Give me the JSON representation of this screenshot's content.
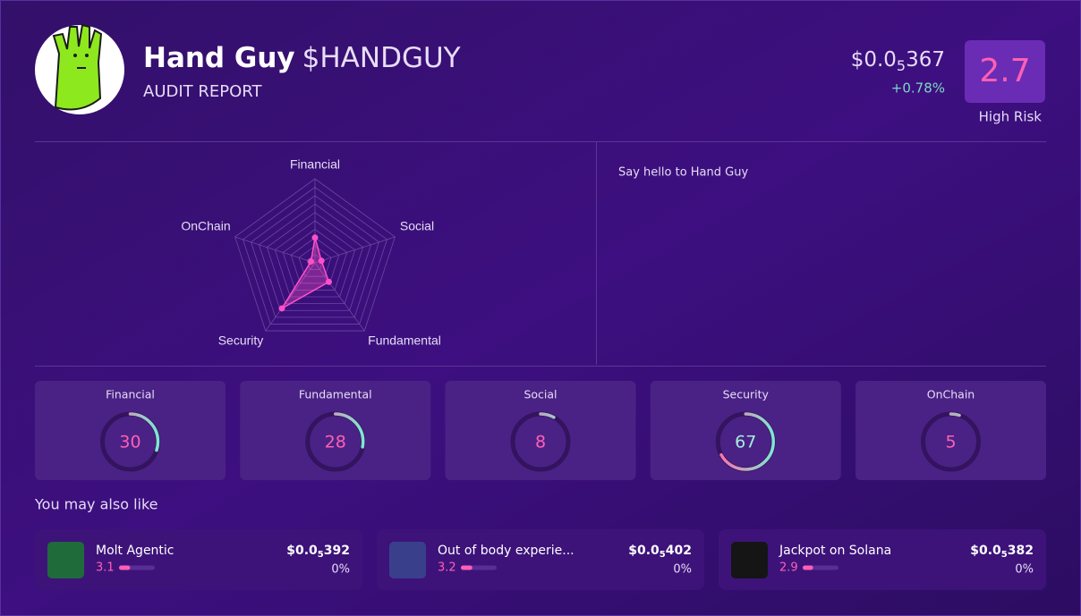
{
  "header": {
    "name": "Hand Guy",
    "ticker": "$HANDGUY",
    "subtitle": "AUDIT REPORT",
    "price": {
      "prefix": "$0.0",
      "zeros": "5",
      "digits": "367"
    },
    "change": "+0.78%",
    "score": 2.7,
    "risk": "High Risk"
  },
  "description": "Say hello to Hand Guy",
  "scores": {
    "rlim": [
      0,
      100
    ],
    "items": [
      {
        "label": "Financial",
        "value": 30
      },
      {
        "label": "Fundamental",
        "value": 28
      },
      {
        "label": "Social",
        "value": 8
      },
      {
        "label": "Security",
        "value": 67
      },
      {
        "label": "OnChain",
        "value": 5
      }
    ]
  },
  "related": {
    "title": "You may also like",
    "score_lim": [
      0,
      10
    ],
    "items": [
      {
        "name": "Molt Agentic",
        "score": 3.1,
        "price": {
          "prefix": "$0.0",
          "zeros": "5",
          "digits": "392"
        },
        "change": "0%"
      },
      {
        "name": "Out of body experie...",
        "score": 3.2,
        "price": {
          "prefix": "$0.0",
          "zeros": "5",
          "digits": "402"
        },
        "change": "0%"
      },
      {
        "name": "Jackpot on Solana",
        "score": 2.9,
        "price": {
          "prefix": "$0.0",
          "zeros": "5",
          "digits": "382"
        },
        "change": "0%"
      }
    ]
  }
}
